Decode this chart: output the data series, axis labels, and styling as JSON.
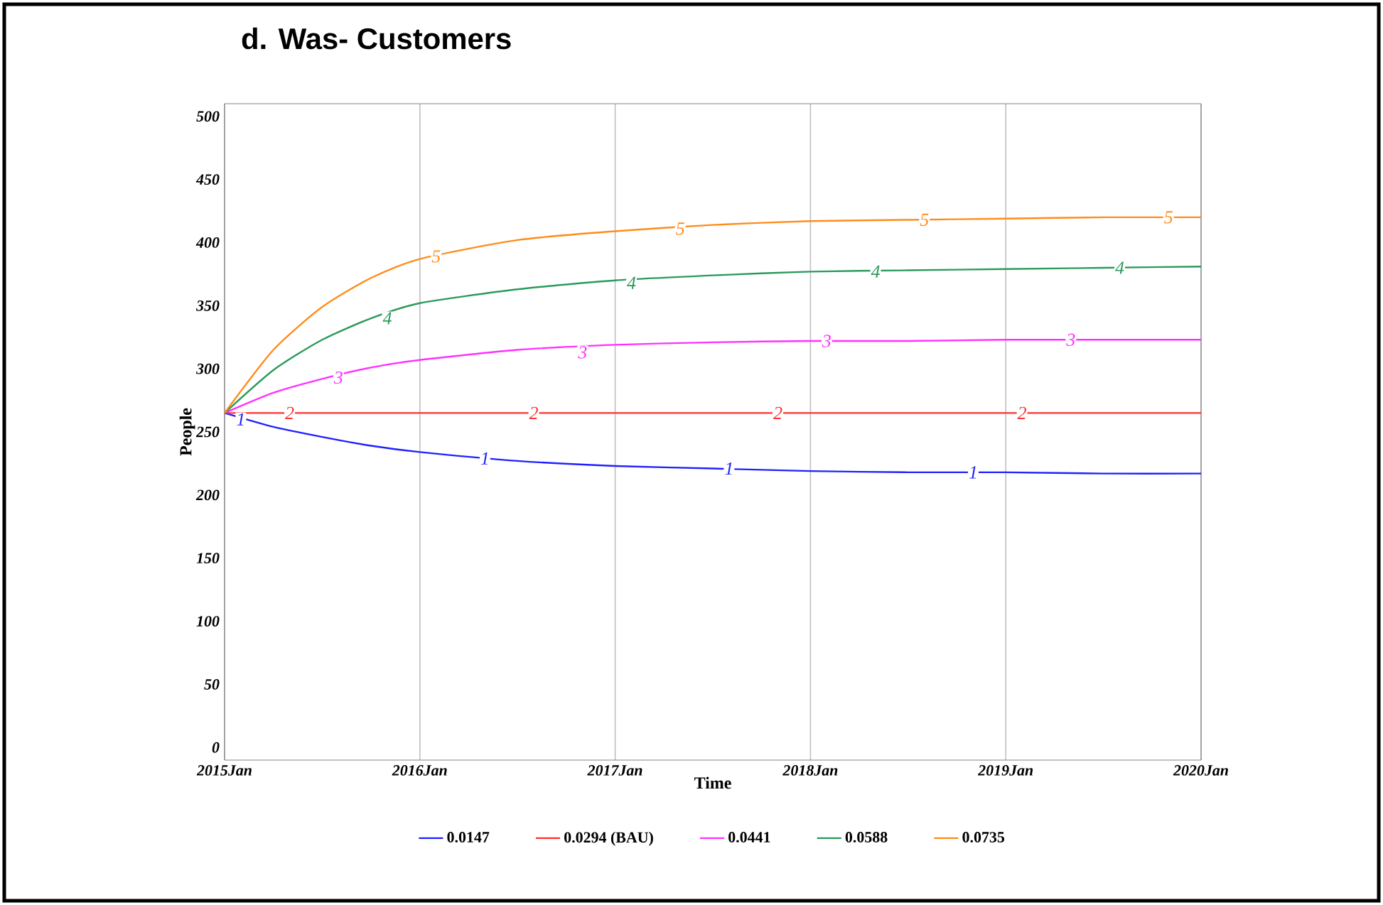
{
  "chart_data": {
    "type": "line",
    "title": "d.   Was- Customers",
    "xlabel": "Time",
    "ylabel": "People",
    "x": [
      "2015-01",
      "2015-04",
      "2015-07",
      "2015-10",
      "2016-01",
      "2016-07",
      "2017-01",
      "2017-07",
      "2018-01",
      "2018-07",
      "2019-01",
      "2019-07",
      "2020-01"
    ],
    "series": [
      {
        "name": "0.0147",
        "color": "#2020ff",
        "values": [
          265,
          254,
          246,
          239,
          234,
          227,
          223,
          221,
          219,
          218,
          218,
          217,
          217
        ]
      },
      {
        "name": "0.0294 (BAU)",
        "color": "#ff3030",
        "values": [
          265,
          265,
          265,
          265,
          265,
          265,
          265,
          265,
          265,
          265,
          265,
          265,
          265
        ]
      },
      {
        "name": "0.0441",
        "color": "#ff30ff",
        "values": [
          265,
          281,
          292,
          301,
          307,
          315,
          319,
          321,
          322,
          322,
          323,
          323,
          323
        ]
      },
      {
        "name": "0.0588",
        "color": "#2a9a5a",
        "values": [
          265,
          299,
          323,
          340,
          352,
          363,
          370,
          374,
          377,
          378,
          379,
          380,
          381
        ]
      },
      {
        "name": "0.0735",
        "color": "#ff8c1a",
        "values": [
          265,
          315,
          349,
          372,
          387,
          402,
          409,
          414,
          417,
          418,
          419,
          420,
          420
        ]
      }
    ],
    "xlim": [
      "2015-01",
      "2020-01"
    ],
    "ylim": [
      -10,
      510
    ],
    "xticks": [
      {
        "value": "2015-01",
        "label": "2015Jan"
      },
      {
        "value": "2016-01",
        "label": "2016Jan"
      },
      {
        "value": "2017-01",
        "label": "2017Jan"
      },
      {
        "value": "2018-01",
        "label": "2018Jan"
      },
      {
        "value": "2019-01",
        "label": "2019Jan"
      },
      {
        "value": "2020-01",
        "label": "2020Jan"
      }
    ],
    "yticks": [
      0,
      50,
      100,
      150,
      200,
      250,
      300,
      350,
      400,
      450,
      500
    ],
    "grid": "x",
    "legend": "bottom",
    "marker": "none",
    "line_style": "solid",
    "annotations": [
      {
        "text": "1",
        "x": "2015-02",
        "y": 260
      },
      {
        "text": "1",
        "x": "2016-05",
        "y": 229
      },
      {
        "text": "1",
        "x": "2017-08",
        "y": 221
      },
      {
        "text": "1",
        "x": "2018-11",
        "y": 218
      },
      {
        "text": "2",
        "x": "2015-05",
        "y": 265
      },
      {
        "text": "2",
        "x": "2016-08",
        "y": 265
      },
      {
        "text": "2",
        "x": "2017-11",
        "y": 265
      },
      {
        "text": "2",
        "x": "2019-02",
        "y": 265
      },
      {
        "text": "3",
        "x": "2015-08",
        "y": 293
      },
      {
        "text": "3",
        "x": "2016-11",
        "y": 313
      },
      {
        "text": "3",
        "x": "2018-02",
        "y": 322
      },
      {
        "text": "3",
        "x": "2019-05",
        "y": 323
      },
      {
        "text": "4",
        "x": "2015-11",
        "y": 340
      },
      {
        "text": "4",
        "x": "2017-02",
        "y": 368
      },
      {
        "text": "4",
        "x": "2018-05",
        "y": 377
      },
      {
        "text": "4",
        "x": "2019-08",
        "y": 380
      },
      {
        "text": "5",
        "x": "2016-02",
        "y": 389
      },
      {
        "text": "5",
        "x": "2017-05",
        "y": 411
      },
      {
        "text": "5",
        "x": "2018-08",
        "y": 418
      },
      {
        "text": "5",
        "x": "2019-11",
        "y": 420
      }
    ]
  }
}
